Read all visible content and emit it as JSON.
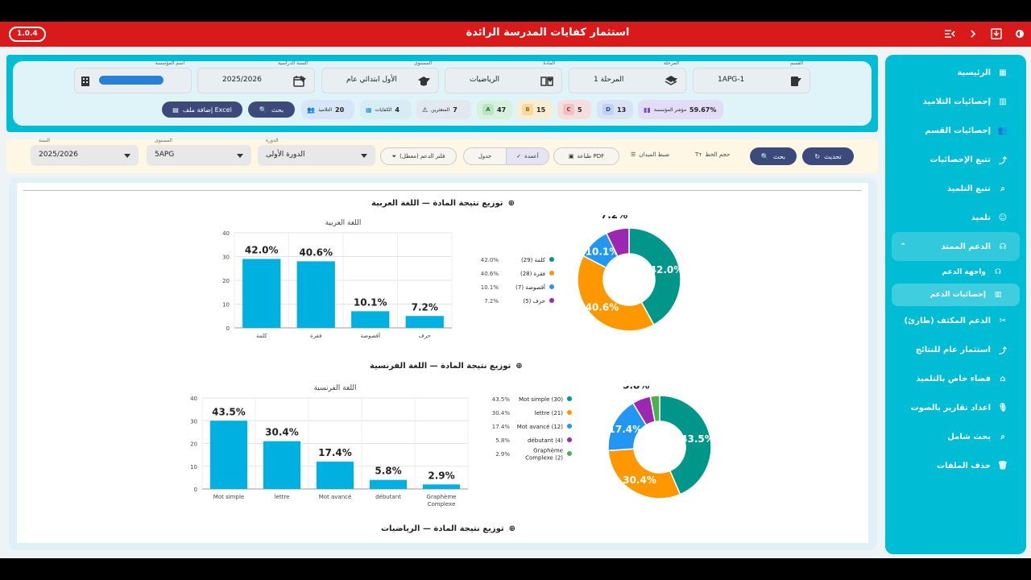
{
  "app": {
    "version": "1.0.4",
    "title": "استثمار كفايات المدرسة الرائدة"
  },
  "sidebar": {
    "items": [
      {
        "label": "الرئيسية",
        "icon": "grid-icon"
      },
      {
        "label": "إحصائيات التلاميذ",
        "icon": "bar-chart-icon"
      },
      {
        "label": "إحصائيات القسم",
        "icon": "group-icon"
      },
      {
        "label": "تتبع الإحصائيات",
        "icon": "trend-icon"
      },
      {
        "label": "تتبع التلميذ",
        "icon": "person-search-icon"
      },
      {
        "label": "تلميذ",
        "icon": "person-icon"
      },
      {
        "label": "الدعم الممتد",
        "icon": "headset-icon"
      },
      {
        "label": "واجهة الدعم",
        "icon": "headset-icon"
      },
      {
        "label": "إحصائيات الدعم",
        "icon": "bar-chart-icon"
      },
      {
        "label": "الدعم المكثف (طارئ)",
        "icon": "tools-icon"
      },
      {
        "label": "استثمار عام للنتائج",
        "icon": "trend-icon"
      },
      {
        "label": "فضاء خاص بالتلميذ",
        "icon": "workspace-icon"
      },
      {
        "label": "اعداد تقارير بالصوت",
        "icon": "mic-icon"
      },
      {
        "label": "بحث شامل",
        "icon": "search-icon"
      },
      {
        "label": "حذف الملفات",
        "icon": "trash-icon"
      }
    ]
  },
  "filters": {
    "institution": {
      "label": "اسم المؤسسة",
      "value": ""
    },
    "school_year": {
      "label": "السنة الدراسية",
      "value": "2025/2026"
    },
    "level": {
      "label": "المستوى",
      "value": "الأول ابتدائي عام"
    },
    "subject": {
      "label": "المادة",
      "value": "الرياضيات"
    },
    "stage": {
      "label": "المرحلة",
      "value": "المرحلة 1"
    },
    "class": {
      "label": "القسم",
      "value": "1APG-1"
    }
  },
  "stats": {
    "indicator": {
      "label": "مؤشر المؤسسة",
      "value": "59.67%"
    },
    "d": {
      "letter": "D",
      "value": "13"
    },
    "c": {
      "letter": "C",
      "value": "5"
    },
    "b": {
      "letter": "B",
      "value": "15"
    },
    "a": {
      "letter": "A",
      "value": "47"
    },
    "struggling": {
      "label": "المتعثرين",
      "value": "7"
    },
    "competencies": {
      "label": "الكفايات",
      "value": "4"
    },
    "students": {
      "label": "التلاميذ",
      "value": "20"
    }
  },
  "actions": {
    "search": "بحث",
    "add_excel": "إضافة ملف Excel"
  },
  "toolbar": {
    "year": {
      "label": "السنة",
      "value": "2025/2026"
    },
    "level": {
      "label": "المستوى",
      "value": "5APG"
    },
    "session": {
      "label": "الدورة",
      "value": "الدورة الأولى"
    },
    "support_filter": "فلتر الدعم (معطل)",
    "table": "جدول",
    "columns": "أعمدة",
    "pdf": "طباعة PDF",
    "field_settings": "ضبط الميدان",
    "font_size": "حجم الخط",
    "search": "بحث",
    "refresh": "تحديث"
  },
  "colors": {
    "teal": "#00968a",
    "orange": "#ff9800",
    "blue": "#2196f3",
    "purple": "#9c27b0",
    "green": "#4caf50",
    "bar": "#00b0e0"
  },
  "sections": {
    "arabic_title": "توزيع نتيجة المادة — اللغة العربية",
    "french_title": "توزيع نتيجة المادة — اللغة الفرنسية",
    "math_title": "توزيع نتيجة المادة — الرياضيات"
  },
  "chart_data": [
    {
      "type": "bar",
      "title": "اللغة العربية",
      "categories": [
        "كلمة",
        "فقرة",
        "أقصوصة",
        "حرف"
      ],
      "values": [
        29,
        28,
        7,
        5
      ],
      "data_labels": [
        "42.0%",
        "40.6%",
        "10.1%",
        "7.2%"
      ],
      "ylim": [
        0,
        40
      ],
      "yticks": [
        0,
        10,
        20,
        30,
        40
      ],
      "grid": true
    },
    {
      "type": "pie",
      "categories": [
        "كلمة",
        "فقرة",
        "أقصوصة",
        "حرف"
      ],
      "counts": [
        29,
        28,
        7,
        5
      ],
      "percents": [
        "42.0%",
        "40.6%",
        "10.1%",
        "7.2%"
      ],
      "colors": [
        "#00968a",
        "#ff9800",
        "#2196f3",
        "#9c27b0"
      ],
      "legend_position": "left"
    },
    {
      "type": "bar",
      "title": "اللغة الفرنسية",
      "categories": [
        "Mot simple",
        "lettre",
        "Mot avancé",
        "débutant",
        "Graphème Complexe"
      ],
      "values": [
        30,
        21,
        12,
        4,
        2
      ],
      "data_labels": [
        "43.5%",
        "30.4%",
        "17.4%",
        "5.8%",
        "2.9%"
      ],
      "ylim": [
        0,
        40
      ],
      "yticks": [
        0,
        10,
        20,
        30,
        40
      ],
      "grid": true
    },
    {
      "type": "pie",
      "categories": [
        "Mot simple",
        "lettre",
        "Mot avancé",
        "débutant",
        "Graphème Complexe"
      ],
      "counts": [
        30,
        21,
        12,
        4,
        2
      ],
      "percents": [
        "43.5%",
        "30.4%",
        "17.4%",
        "5.8%",
        "2.9%"
      ],
      "colors": [
        "#00968a",
        "#ff9800",
        "#2196f3",
        "#9c27b0",
        "#4caf50"
      ],
      "legend_position": "left"
    }
  ]
}
